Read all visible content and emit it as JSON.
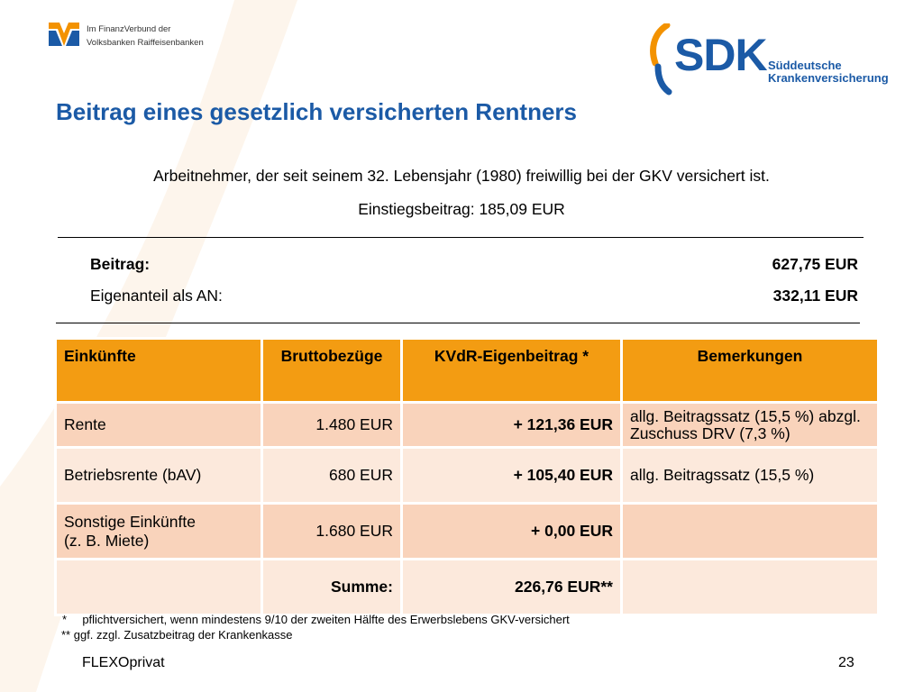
{
  "header": {
    "vr_logo_line1": "Im FinanzVerbund der",
    "vr_logo_line2": "Volksbanken Raiffeisenbanken",
    "sdk_logo_word": "SDK",
    "sdk_logo_line1": "Süddeutsche",
    "sdk_logo_line2": "Krankenversicherung"
  },
  "title": "Beitrag eines gesetzlich versicherten Rentners",
  "intro": {
    "line1": "Arbeitnehmer, der seit seinem 32. Lebensjahr (1980) freiwillig bei der GKV versichert ist.",
    "line2": "Einstiegsbeitrag: 185,09 EUR"
  },
  "summary": {
    "beitrag_label": "Beitrag:",
    "beitrag_value": "627,75 EUR",
    "eigenanteil_label": "Eigenanteil als AN:",
    "eigenanteil_value": "332,11 EUR"
  },
  "table": {
    "headers": [
      "Einkünfte",
      "Bruttobezüge",
      "KVdR-Eigenbeitrag *",
      "Bemerkungen"
    ],
    "rows": [
      {
        "einkuenfte": "Rente",
        "brutto": "1.480 EUR",
        "kvdr": "+ 121,36 EUR",
        "note_line1": "allg. Beitragssatz (15,5 %) abzgl.",
        "note_line2": "Zuschuss DRV (7,3 %)"
      },
      {
        "einkuenfte": "Betriebsrente (bAV)",
        "brutto": "680 EUR",
        "kvdr": "+ 105,40 EUR",
        "note_line1": "allg. Beitragssatz (15,5 %)",
        "note_line2": ""
      },
      {
        "einkuenfte_line1": "Sonstige Einkünfte",
        "einkuenfte_line2": "(z. B. Miete)",
        "brutto": "1.680 EUR",
        "kvdr": "+ 0,00 EUR",
        "note_line1": "",
        "note_line2": ""
      },
      {
        "einkuenfte": "",
        "brutto": "Summe:",
        "kvdr": "226,76 EUR**",
        "note_line1": "",
        "note_line2": ""
      }
    ]
  },
  "footnotes": {
    "fn1_marker": "*",
    "fn1_text": "pflichtversichert, wenn mindestens 9/10 der zweiten Hälfte des Erwerbslebens GKV-versichert",
    "fn2": "** ggf. zzgl. Zusatzbeitrag der Krankenkasse"
  },
  "footer": {
    "left": "FLEXOprivat",
    "page_number": "23"
  },
  "colors": {
    "brand_blue": "#1b5aa6",
    "table_header": "#f39c12",
    "row_dark": "#f9d3bb",
    "row_light": "#fce9dc",
    "sdk_orange": "#f39200"
  }
}
